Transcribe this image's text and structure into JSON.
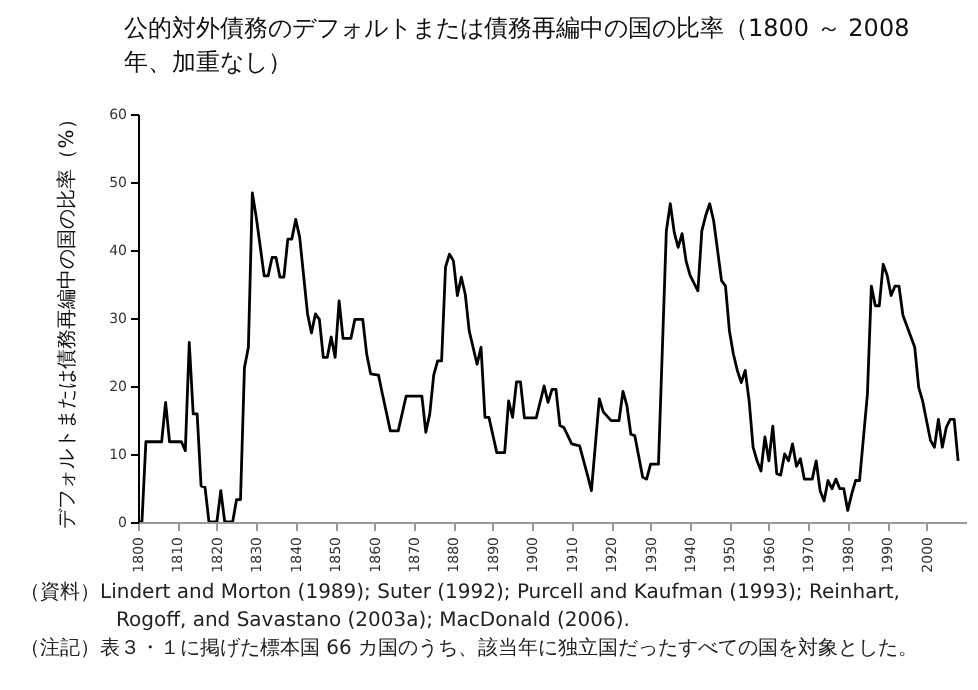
{
  "chart_data": {
    "type": "line",
    "title": "公的対外債務のデフォルトまたは債務再編中の国の比率（1800 ～ 2008 年、加重なし）",
    "ylabel": "デフォルトまたは債務再編中の国の比率（%）",
    "annotations": [
      "（資料）Lindert and Morton (1989); Suter (1992); Purcell and Kaufman (1993); Reinhart, Rogoff, and Savastano (2003a); MacDonald (2006).",
      "（注記）表３・１に掲げた標本国 66 カ国のうち、該当年に独立国だったすべての国を対象とした。"
    ],
    "xlim": [
      1800,
      2010
    ],
    "xticks": [
      1800,
      1810,
      1820,
      1830,
      1840,
      1850,
      1860,
      1870,
      1880,
      1890,
      1900,
      1910,
      1920,
      1930,
      1940,
      1950,
      1960,
      1970,
      1980,
      1990,
      2000
    ],
    "ylim": [
      0,
      60
    ],
    "yticks": [
      0,
      10,
      20,
      30,
      40,
      50,
      60
    ],
    "grid": false,
    "legend": false,
    "marker": "none",
    "line_style": "solid",
    "x": [
      1800,
      1801,
      1802,
      1806,
      1807,
      1808,
      1811,
      1812,
      1813,
      1814,
      1815,
      1816,
      1817,
      1818,
      1820,
      1821,
      1822,
      1824,
      1825,
      1826,
      1827,
      1828,
      1829,
      1830,
      1832,
      1833,
      1834,
      1835,
      1836,
      1837,
      1838,
      1839,
      1840,
      1841,
      1843,
      1844,
      1845,
      1846,
      1847,
      1848,
      1849,
      1850,
      1851,
      1852,
      1854,
      1855,
      1857,
      1858,
      1859,
      1861,
      1862,
      1864,
      1866,
      1868,
      1872,
      1873,
      1874,
      1875,
      1876,
      1877,
      1878,
      1879,
      1880,
      1881,
      1882,
      1883,
      1884,
      1886,
      1887,
      1888,
      1889,
      1891,
      1893,
      1894,
      1895,
      1896,
      1897,
      1898,
      1901,
      1903,
      1904,
      1905,
      1906,
      1907,
      1908,
      1910,
      1912,
      1914,
      1915,
      1917,
      1918,
      1920,
      1922,
      1923,
      1924,
      1925,
      1926,
      1928,
      1929,
      1930,
      1932,
      1934,
      1935,
      1936,
      1937,
      1938,
      1939,
      1940,
      1942,
      1943,
      1944,
      1945,
      1946,
      1947,
      1948,
      1949,
      1950,
      1951,
      1952,
      1953,
      1954,
      1955,
      1956,
      1957,
      1958,
      1959,
      1960,
      1961,
      1962,
      1963,
      1964,
      1965,
      1966,
      1967,
      1968,
      1969,
      1971,
      1972,
      1973,
      1974,
      1975,
      1976,
      1977,
      1978,
      1979,
      1980,
      1981,
      1982,
      1983,
      1985,
      1986,
      1987,
      1988,
      1989,
      1990,
      1991,
      1992,
      1993,
      1994,
      1997,
      1998,
      1999,
      2001,
      2002,
      2003,
      2004,
      2005,
      2006,
      2007,
      2008
    ],
    "values": [
      0,
      0,
      11.8,
      11.8,
      17.6,
      11.8,
      11.8,
      10.5,
      26.4,
      15.9,
      15.9,
      5.3,
      5.1,
      0,
      0,
      4.6,
      0,
      0,
      3.3,
      3.3,
      22.7,
      25.7,
      48.4,
      44.8,
      36.2,
      36.2,
      38.9,
      38.9,
      36,
      36,
      41.6,
      41.6,
      44.5,
      41.9,
      30.6,
      27.8,
      30.6,
      29.8,
      24.2,
      24.2,
      27.2,
      24.2,
      32.5,
      27,
      27,
      29.8,
      29.8,
      24.7,
      21.8,
      21.6,
      18.8,
      13.4,
      13.4,
      18.5,
      18.5,
      13.2,
      15.9,
      21.6,
      23.7,
      23.7,
      37.5,
      39.4,
      38.4,
      33.3,
      36,
      33.5,
      28.1,
      23.2,
      25.7,
      15.4,
      15.4,
      10.2,
      10.2,
      17.8,
      15.4,
      20.6,
      20.6,
      15.3,
      15.3,
      20,
      17.6,
      19.5,
      19.5,
      14.2,
      13.9,
      11.5,
      11.2,
      6.9,
      4.6,
      18.1,
      16.2,
      14.9,
      14.9,
      19.2,
      17.1,
      12.9,
      12.7,
      6.6,
      6.3,
      8.5,
      8.5,
      42.8,
      46.8,
      42.6,
      40.4,
      42.4,
      38.4,
      36.3,
      34,
      42.8,
      45.1,
      46.8,
      44.3,
      39.9,
      35.5,
      34.7,
      28.1,
      24.7,
      22.3,
      20.5,
      22.3,
      17.8,
      11,
      9,
      7.5,
      12.5,
      9,
      14.1,
      7.1,
      6.9,
      10,
      9,
      11.5,
      8.2,
      9.3,
      6.3,
      6.3,
      9,
      4.6,
      3.1,
      6.1,
      4.9,
      6.3,
      4.9,
      4.9,
      1.7,
      4.1,
      6.1,
      6.1,
      18.8,
      34.7,
      31.8,
      31.8,
      37.9,
      36.3,
      33.3,
      34.7,
      34.7,
      30.4,
      25.7,
      19.8,
      17.8,
      12,
      11,
      15.1,
      11,
      13.9,
      15.1,
      15.1,
      9
    ],
    "color": "#000000"
  }
}
